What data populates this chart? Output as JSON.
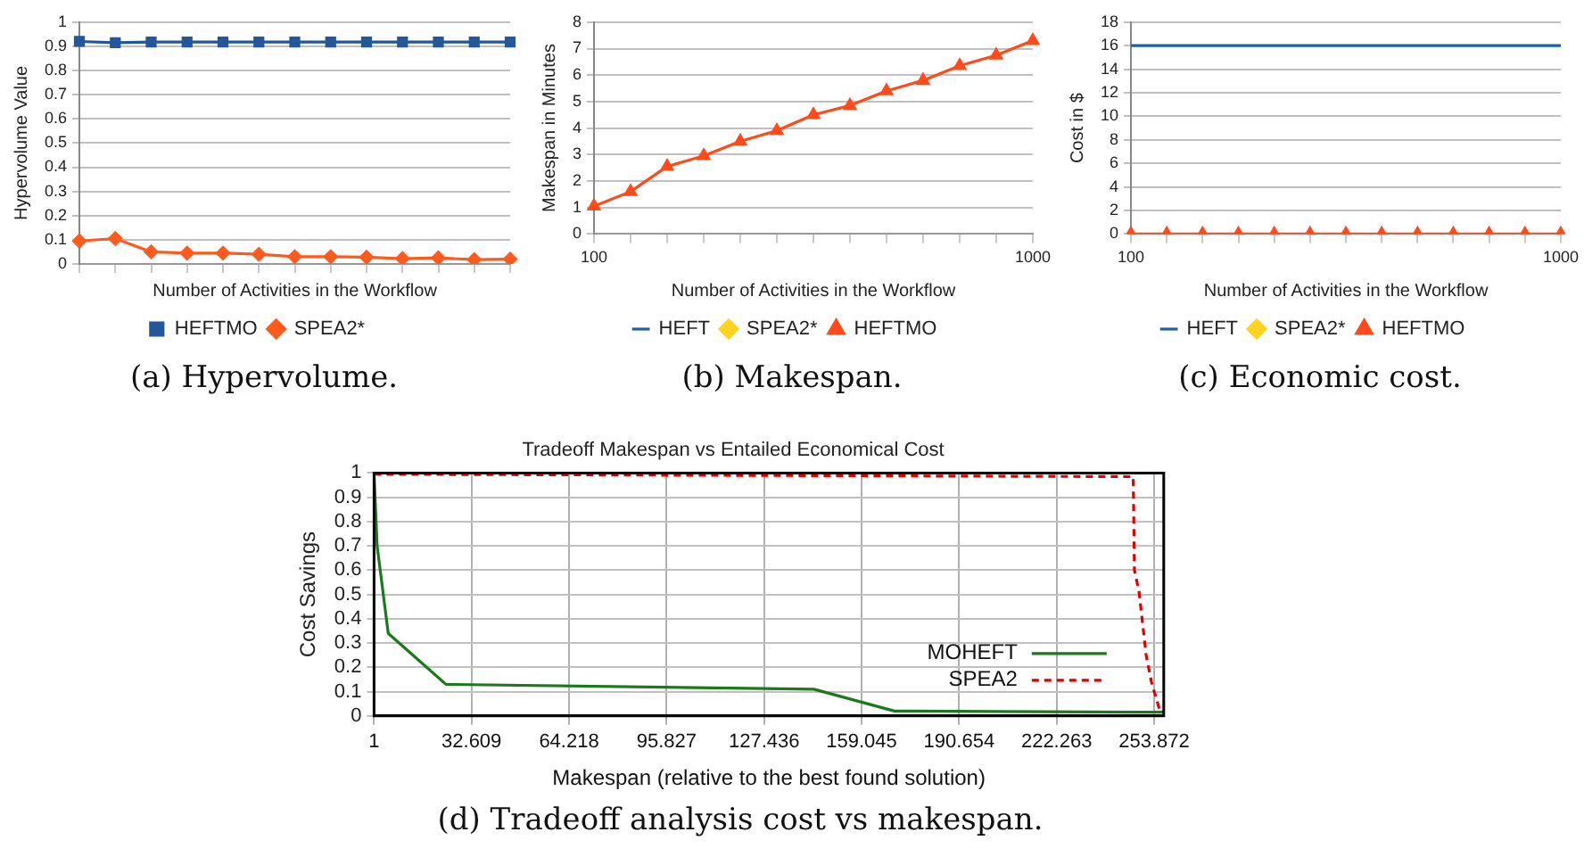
{
  "chart_data": [
    {
      "type": "line",
      "ylabel": "Hypervolume Value",
      "xlabel": "Number of Activities in the Workflow",
      "categories": [
        null,
        null,
        null,
        null,
        null,
        null,
        null,
        null,
        null,
        null,
        null,
        null,
        null
      ],
      "ylim": [
        0,
        1
      ],
      "yticks": [
        0,
        0.1,
        0.2,
        0.3,
        0.4,
        0.5,
        0.6,
        0.7,
        0.8,
        0.9,
        1
      ],
      "grid": "y",
      "legend": "bottom",
      "tick_labels": "y",
      "annotations": [
        "(a) Hypervolume."
      ],
      "series": [
        {
          "name": "HEFTMO",
          "color": "#24579a",
          "marker": "square",
          "values": [
            0.92,
            0.915,
            0.918,
            0.918,
            0.918,
            0.918,
            0.918,
            0.918,
            0.918,
            0.918,
            0.918,
            0.918,
            0.918
          ]
        },
        {
          "name": "SPEA2*",
          "color": "#ff5a1e",
          "marker": "diamond",
          "values": [
            0.095,
            0.105,
            0.05,
            0.045,
            0.045,
            0.04,
            0.03,
            0.03,
            0.028,
            0.022,
            0.025,
            0.018,
            0.02
          ]
        }
      ]
    },
    {
      "type": "line",
      "ylabel": "Makespan in Minutes",
      "xlabel": "Number of Activities in the Workflow",
      "categories": [
        "100",
        null,
        null,
        null,
        null,
        null,
        null,
        null,
        null,
        null,
        null,
        null,
        "1000"
      ],
      "ylim": [
        0,
        8
      ],
      "yticks": [
        0,
        1,
        2,
        3,
        4,
        5,
        6,
        7,
        8
      ],
      "grid": "y",
      "legend": "bottom",
      "annotations": [
        "(b) Makespan."
      ],
      "series": [
        {
          "name": "HEFT",
          "color": "#1f5fa8",
          "marker": "none",
          "values": [
            null,
            null,
            null,
            null,
            null,
            null,
            null,
            null,
            null,
            null,
            null,
            null,
            null
          ]
        },
        {
          "name": "SPEA2*",
          "color": "#ffd320",
          "marker": "diamond",
          "values": [
            null,
            null,
            null,
            null,
            null,
            null,
            null,
            null,
            null,
            null,
            null,
            null,
            null
          ]
        },
        {
          "name": "HEFTMO",
          "color": "#ff4a1a",
          "marker": "triangle",
          "values": [
            1.05,
            1.6,
            2.55,
            2.95,
            3.5,
            3.9,
            4.5,
            4.85,
            5.4,
            5.8,
            6.35,
            6.75,
            7.3
          ]
        }
      ]
    },
    {
      "type": "line",
      "ylabel": "Cost in $",
      "xlabel": "Number of Activities in the Workflow",
      "categories": [
        "100",
        null,
        null,
        null,
        null,
        null,
        null,
        null,
        null,
        null,
        null,
        null,
        "1000"
      ],
      "ylim": [
        0,
        18
      ],
      "yticks": [
        0,
        2,
        4,
        6,
        8,
        10,
        12,
        14,
        16,
        18
      ],
      "grid": "y",
      "legend": "bottom",
      "annotations": [
        "(c) Economic cost."
      ],
      "series": [
        {
          "name": "HEFT",
          "color": "#1f5fa8",
          "marker": "none",
          "values": [
            16,
            16,
            16,
            16,
            16,
            16,
            16,
            16,
            16,
            16,
            16,
            16,
            16
          ]
        },
        {
          "name": "SPEA2*",
          "color": "#ffd320",
          "marker": "diamond",
          "values": [
            null,
            null,
            null,
            null,
            null,
            null,
            null,
            null,
            null,
            null,
            null,
            null,
            null
          ]
        },
        {
          "name": "HEFTMO",
          "color": "#ff4a1a",
          "marker": "triangle",
          "values": [
            0,
            0,
            0,
            0,
            0,
            0,
            0,
            0,
            0,
            0,
            0,
            0,
            0
          ]
        }
      ]
    },
    {
      "type": "line",
      "title": "Tradeoff Makespan vs Entailed Economical Cost",
      "xlabel": "Makespan (relative to the best found solution)",
      "ylabel": "Cost Savings",
      "xlim": [
        1,
        257
      ],
      "xticks": [
        1,
        32.609,
        64.218,
        95.827,
        127.436,
        159.045,
        190.654,
        222.263,
        253.872
      ],
      "ylim": [
        0,
        1
      ],
      "yticks": [
        0,
        0.1,
        0.2,
        0.3,
        0.4,
        0.5,
        0.6,
        0.7,
        0.8,
        0.9,
        1
      ],
      "grid": true,
      "legend": "bottom right",
      "marker": "none",
      "annotations": [
        "(d) Tradeoff analysis cost vs makespan."
      ],
      "series": [
        {
          "name": "MOHEFT",
          "color": "#1a7a1a",
          "line_style": "solid",
          "x": [
            1,
            2,
            5.6,
            24.3,
            143.6,
            169.7,
            257
          ],
          "values": [
            1,
            0.7,
            0.34,
            0.13,
            0.11,
            0.02,
            0.015
          ]
        },
        {
          "name": "SPEA2",
          "color": "#e00000",
          "line_style": "dashed",
          "x": [
            1,
            247.1,
            247.5,
            249,
            251.3,
            253,
            256
          ],
          "values": [
            0.995,
            0.985,
            0.6,
            0.51,
            0.25,
            0.14,
            0.01
          ]
        }
      ]
    }
  ]
}
